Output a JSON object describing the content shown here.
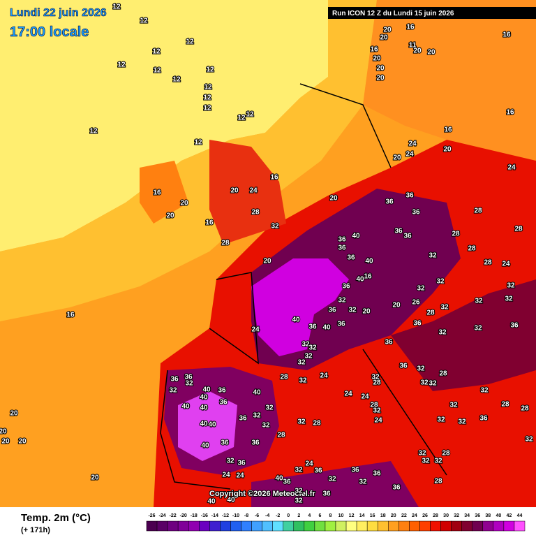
{
  "header": {
    "date": "Lundi 22 juin 2026",
    "time": "17:00 locale",
    "run": "Run ICON 12 Z du Lundi 15 juin 2026"
  },
  "copyright": "Copyright ©2026 Meteociel.fr",
  "legend": {
    "title": "Temp. 2m (°C)",
    "lead": "(+ 171h)",
    "values": [
      -26,
      -24,
      -22,
      -20,
      -18,
      -16,
      -14,
      -12,
      -10,
      -8,
      -6,
      -4,
      -2,
      0,
      2,
      4,
      6,
      8,
      10,
      12,
      14,
      16,
      18,
      20,
      22,
      24,
      26,
      28,
      30,
      32,
      34,
      36,
      38,
      40,
      42,
      44
    ],
    "colors": [
      "#4b0050",
      "#5a0066",
      "#6e0080",
      "#800099",
      "#9000b0",
      "#6a00c0",
      "#4020d0",
      "#2040e0",
      "#2060f0",
      "#3080ff",
      "#40a0ff",
      "#50c0ff",
      "#60e0ff",
      "#40d0a0",
      "#30c060",
      "#40d040",
      "#70e040",
      "#a0f040",
      "#d0f060",
      "#ffff80",
      "#ffee60",
      "#ffdd40",
      "#ffc030",
      "#ffa020",
      "#ff8010",
      "#ff6000",
      "#ff4000",
      "#f01000",
      "#d00000",
      "#a00010",
      "#800030",
      "#700050",
      "#900090",
      "#b000c0",
      "#d000e0",
      "#ff50ff"
    ]
  },
  "map_labels": [
    12,
    12,
    12,
    12,
    12,
    12,
    12,
    12,
    12,
    12,
    12,
    12,
    12,
    12,
    12,
    16,
    20,
    20,
    20,
    24,
    16,
    28,
    32,
    16,
    28,
    20,
    20,
    36,
    36,
    36,
    28,
    40,
    36,
    36,
    36,
    36,
    36,
    40,
    28,
    28,
    32,
    28,
    36,
    40,
    16,
    28,
    24,
    32,
    32,
    32,
    32,
    32,
    20,
    20,
    26,
    28,
    32,
    32,
    32,
    40,
    36,
    40,
    36,
    36,
    24,
    16,
    36,
    36,
    32,
    32,
    36,
    32,
    32,
    32,
    32,
    24,
    28,
    32,
    36,
    36,
    32,
    32,
    40,
    36,
    40,
    40,
    36,
    40,
    32,
    40,
    40,
    40,
    36,
    32,
    32,
    32,
    28,
    40,
    36,
    36,
    28,
    28,
    24,
    24,
    32,
    28,
    32,
    24,
    36,
    32,
    32,
    32,
    28,
    32,
    32,
    32,
    36,
    32,
    28,
    28,
    32,
    32,
    32,
    28,
    32,
    28,
    32,
    36,
    24,
    24,
    40,
    36,
    24,
    32,
    36,
    32,
    36,
    36,
    32,
    36,
    32,
    32,
    40,
    40,
    36,
    20,
    20,
    20,
    20,
    20,
    20,
    24,
    24,
    16,
    20,
    24,
    16,
    16,
    16,
    20,
    20,
    16,
    20,
    20,
    20,
    11,
    20,
    20
  ]
}
